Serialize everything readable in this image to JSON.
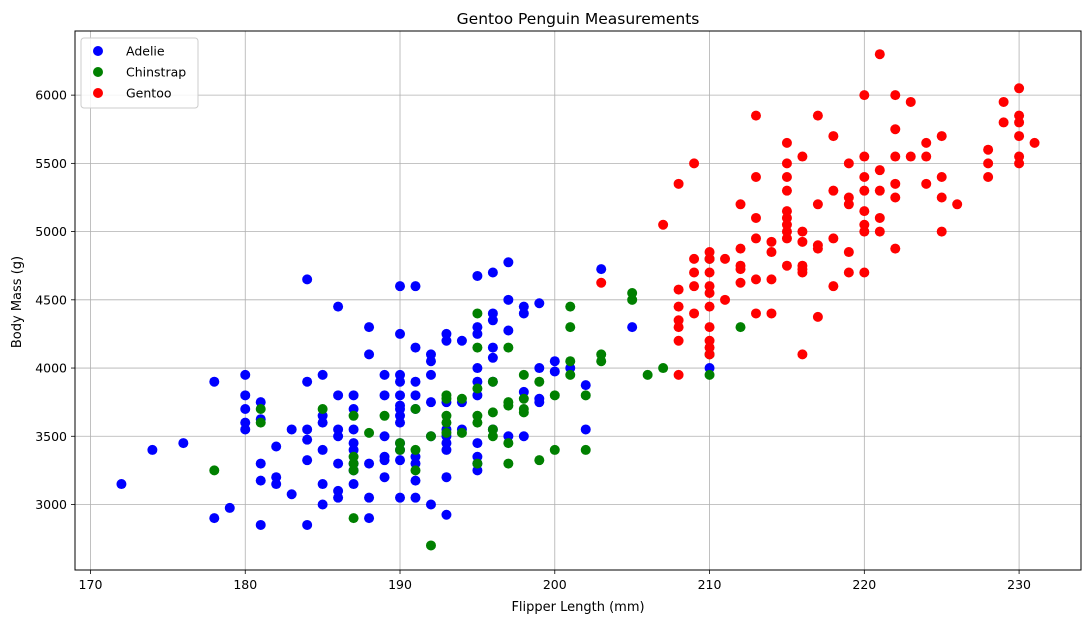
{
  "chart_data": {
    "type": "scatter",
    "title": "Gentoo Penguin Measurements",
    "xlabel": "Flipper Length (mm)",
    "ylabel": "Body Mass (g)",
    "xlim": [
      169,
      234
    ],
    "ylim": [
      2520,
      6470
    ],
    "xticks": [
      170,
      180,
      190,
      200,
      210,
      220,
      230
    ],
    "yticks": [
      3000,
      3500,
      4000,
      4500,
      5000,
      5500,
      6000
    ],
    "grid": true,
    "legend_position": "top-left",
    "series": [
      {
        "name": "Adelie",
        "color": "#0000ff",
        "points": [
          [
            172,
            3150
          ],
          [
            174,
            3400
          ],
          [
            176,
            3450
          ],
          [
            178,
            3900
          ],
          [
            178,
            2900
          ],
          [
            179,
            2975
          ],
          [
            180,
            3950
          ],
          [
            180,
            3800
          ],
          [
            180,
            3700
          ],
          [
            180,
            3600
          ],
          [
            180,
            3550
          ],
          [
            181,
            3750
          ],
          [
            181,
            3625
          ],
          [
            181,
            3300
          ],
          [
            181,
            3175
          ],
          [
            181,
            2850
          ],
          [
            182,
            3425
          ],
          [
            182,
            3200
          ],
          [
            182,
            3150
          ],
          [
            183,
            3550
          ],
          [
            183,
            3075
          ],
          [
            184,
            4650
          ],
          [
            184,
            3900
          ],
          [
            184,
            3550
          ],
          [
            184,
            3475
          ],
          [
            184,
            3325
          ],
          [
            184,
            2850
          ],
          [
            185,
            3950
          ],
          [
            185,
            3650
          ],
          [
            185,
            3600
          ],
          [
            185,
            3400
          ],
          [
            185,
            3150
          ],
          [
            185,
            3000
          ],
          [
            186,
            4450
          ],
          [
            186,
            3800
          ],
          [
            186,
            3550
          ],
          [
            186,
            3500
          ],
          [
            186,
            3300
          ],
          [
            186,
            3100
          ],
          [
            186,
            3050
          ],
          [
            187,
            3800
          ],
          [
            187,
            3700
          ],
          [
            187,
            3550
          ],
          [
            187,
            3450
          ],
          [
            187,
            3400
          ],
          [
            187,
            3300
          ],
          [
            187,
            3250
          ],
          [
            187,
            3150
          ],
          [
            188,
            4300
          ],
          [
            188,
            4100
          ],
          [
            188,
            3300
          ],
          [
            188,
            3050
          ],
          [
            188,
            2900
          ],
          [
            189,
            3950
          ],
          [
            189,
            3800
          ],
          [
            189,
            3500
          ],
          [
            189,
            3350
          ],
          [
            189,
            3325
          ],
          [
            189,
            3200
          ],
          [
            190,
            4600
          ],
          [
            190,
            4250
          ],
          [
            190,
            3950
          ],
          [
            190,
            3900
          ],
          [
            190,
            3800
          ],
          [
            190,
            3725
          ],
          [
            190,
            3700
          ],
          [
            190,
            3650
          ],
          [
            190,
            3600
          ],
          [
            190,
            3450
          ],
          [
            190,
            3400
          ],
          [
            190,
            3325
          ],
          [
            190,
            3050
          ],
          [
            191,
            4600
          ],
          [
            191,
            4150
          ],
          [
            191,
            3900
          ],
          [
            191,
            3800
          ],
          [
            191,
            3700
          ],
          [
            191,
            3350
          ],
          [
            191,
            3300
          ],
          [
            191,
            3175
          ],
          [
            191,
            3050
          ],
          [
            192,
            4100
          ],
          [
            192,
            4050
          ],
          [
            192,
            3950
          ],
          [
            192,
            3750
          ],
          [
            192,
            3500
          ],
          [
            192,
            3000
          ],
          [
            193,
            4250
          ],
          [
            193,
            4200
          ],
          [
            193,
            3750
          ],
          [
            193,
            3550
          ],
          [
            193,
            3500
          ],
          [
            193,
            3450
          ],
          [
            193,
            3400
          ],
          [
            193,
            3200
          ],
          [
            193,
            2925
          ],
          [
            194,
            4200
          ],
          [
            194,
            3750
          ],
          [
            194,
            3550
          ],
          [
            195,
            4675
          ],
          [
            195,
            4300
          ],
          [
            195,
            4250
          ],
          [
            195,
            4000
          ],
          [
            195,
            3900
          ],
          [
            195,
            3800
          ],
          [
            195,
            3450
          ],
          [
            195,
            3350
          ],
          [
            195,
            3300
          ],
          [
            195,
            3250
          ],
          [
            196,
            4700
          ],
          [
            196,
            4400
          ],
          [
            196,
            4350
          ],
          [
            196,
            4150
          ],
          [
            196,
            4075
          ],
          [
            196,
            3900
          ],
          [
            196,
            3550
          ],
          [
            197,
            4775
          ],
          [
            197,
            4500
          ],
          [
            197,
            4275
          ],
          [
            197,
            3500
          ],
          [
            198,
            4450
          ],
          [
            198,
            4400
          ],
          [
            198,
            3825
          ],
          [
            198,
            3500
          ],
          [
            199,
            4475
          ],
          [
            199,
            4000
          ],
          [
            199,
            3775
          ],
          [
            199,
            3750
          ],
          [
            200,
            4050
          ],
          [
            200,
            3975
          ],
          [
            201,
            4000
          ],
          [
            202,
            3875
          ],
          [
            202,
            3550
          ],
          [
            203,
            4725
          ],
          [
            205,
            4300
          ],
          [
            210,
            4000
          ]
        ]
      },
      {
        "name": "Chinstrap",
        "color": "#008000",
        "points": [
          [
            178,
            3250
          ],
          [
            181,
            3700
          ],
          [
            181,
            3600
          ],
          [
            185,
            3700
          ],
          [
            187,
            3650
          ],
          [
            187,
            3350
          ],
          [
            187,
            3300
          ],
          [
            187,
            3250
          ],
          [
            187,
            2900
          ],
          [
            188,
            3525
          ],
          [
            189,
            3650
          ],
          [
            190,
            3450
          ],
          [
            190,
            3400
          ],
          [
            191,
            3700
          ],
          [
            191,
            3400
          ],
          [
            191,
            3250
          ],
          [
            192,
            3500
          ],
          [
            192,
            2700
          ],
          [
            193,
            3800
          ],
          [
            193,
            3775
          ],
          [
            193,
            3650
          ],
          [
            193,
            3600
          ],
          [
            193,
            3525
          ],
          [
            194,
            3775
          ],
          [
            194,
            3525
          ],
          [
            195,
            4400
          ],
          [
            195,
            4150
          ],
          [
            195,
            3850
          ],
          [
            195,
            3650
          ],
          [
            195,
            3600
          ],
          [
            195,
            3300
          ],
          [
            196,
            3900
          ],
          [
            196,
            3675
          ],
          [
            196,
            3550
          ],
          [
            196,
            3500
          ],
          [
            197,
            4150
          ],
          [
            197,
            3750
          ],
          [
            197,
            3725
          ],
          [
            197,
            3450
          ],
          [
            197,
            3300
          ],
          [
            198,
            3950
          ],
          [
            198,
            3775
          ],
          [
            198,
            3700
          ],
          [
            198,
            3675
          ],
          [
            199,
            3900
          ],
          [
            199,
            3325
          ],
          [
            200,
            3800
          ],
          [
            200,
            3400
          ],
          [
            201,
            4450
          ],
          [
            201,
            4300
          ],
          [
            201,
            4050
          ],
          [
            201,
            3950
          ],
          [
            202,
            3800
          ],
          [
            202,
            3400
          ],
          [
            203,
            4100
          ],
          [
            203,
            4050
          ],
          [
            205,
            4550
          ],
          [
            205,
            4500
          ],
          [
            206,
            3950
          ],
          [
            207,
            4000
          ],
          [
            210,
            4800
          ],
          [
            210,
            4100
          ],
          [
            210,
            3950
          ],
          [
            212,
            4300
          ]
        ]
      },
      {
        "name": "Gentoo",
        "color": "#ff0000",
        "points": [
          [
            203,
            4625
          ],
          [
            207,
            5050
          ],
          [
            208,
            5350
          ],
          [
            208,
            4575
          ],
          [
            208,
            4450
          ],
          [
            208,
            4350
          ],
          [
            208,
            4300
          ],
          [
            208,
            4200
          ],
          [
            208,
            3950
          ],
          [
            209,
            5500
          ],
          [
            209,
            4800
          ],
          [
            209,
            4700
          ],
          [
            209,
            4600
          ],
          [
            209,
            4400
          ],
          [
            210,
            4850
          ],
          [
            210,
            4800
          ],
          [
            210,
            4700
          ],
          [
            210,
            4600
          ],
          [
            210,
            4550
          ],
          [
            210,
            4450
          ],
          [
            210,
            4300
          ],
          [
            210,
            4200
          ],
          [
            210,
            4150
          ],
          [
            210,
            4100
          ],
          [
            211,
            4800
          ],
          [
            211,
            4500
          ],
          [
            212,
            5200
          ],
          [
            212,
            4875
          ],
          [
            212,
            4750
          ],
          [
            212,
            4725
          ],
          [
            212,
            4625
          ],
          [
            213,
            5850
          ],
          [
            213,
            5400
          ],
          [
            213,
            5100
          ],
          [
            213,
            4950
          ],
          [
            213,
            4650
          ],
          [
            213,
            4400
          ],
          [
            214,
            4925
          ],
          [
            214,
            4850
          ],
          [
            214,
            4650
          ],
          [
            214,
            4400
          ],
          [
            215,
            5650
          ],
          [
            215,
            5500
          ],
          [
            215,
            5400
          ],
          [
            215,
            5300
          ],
          [
            215,
            5150
          ],
          [
            215,
            5100
          ],
          [
            215,
            5050
          ],
          [
            215,
            5000
          ],
          [
            215,
            4950
          ],
          [
            215,
            4750
          ],
          [
            216,
            5550
          ],
          [
            216,
            5000
          ],
          [
            216,
            4925
          ],
          [
            216,
            4750
          ],
          [
            216,
            4725
          ],
          [
            216,
            4700
          ],
          [
            216,
            4100
          ],
          [
            217,
            5850
          ],
          [
            217,
            5200
          ],
          [
            217,
            4900
          ],
          [
            217,
            4875
          ],
          [
            217,
            4375
          ],
          [
            218,
            5700
          ],
          [
            218,
            5300
          ],
          [
            218,
            4950
          ],
          [
            218,
            4600
          ],
          [
            219,
            5500
          ],
          [
            219,
            5250
          ],
          [
            219,
            5200
          ],
          [
            219,
            4850
          ],
          [
            219,
            4700
          ],
          [
            220,
            6000
          ],
          [
            220,
            5550
          ],
          [
            220,
            5400
          ],
          [
            220,
            5300
          ],
          [
            220,
            5150
          ],
          [
            220,
            5050
          ],
          [
            220,
            5000
          ],
          [
            220,
            4700
          ],
          [
            221,
            6300
          ],
          [
            221,
            5450
          ],
          [
            221,
            5300
          ],
          [
            221,
            5100
          ],
          [
            221,
            5000
          ],
          [
            222,
            6000
          ],
          [
            222,
            5750
          ],
          [
            222,
            5550
          ],
          [
            222,
            5350
          ],
          [
            222,
            5250
          ],
          [
            222,
            4875
          ],
          [
            223,
            5950
          ],
          [
            223,
            5550
          ],
          [
            224,
            5650
          ],
          [
            224,
            5550
          ],
          [
            224,
            5350
          ],
          [
            225,
            5700
          ],
          [
            225,
            5400
          ],
          [
            225,
            5250
          ],
          [
            225,
            5000
          ],
          [
            226,
            5200
          ],
          [
            228,
            5600
          ],
          [
            228,
            5500
          ],
          [
            228,
            5400
          ],
          [
            229,
            5950
          ],
          [
            229,
            5800
          ],
          [
            230,
            6050
          ],
          [
            230,
            5850
          ],
          [
            230,
            5800
          ],
          [
            230,
            5700
          ],
          [
            230,
            5550
          ],
          [
            230,
            5500
          ],
          [
            231,
            5650
          ]
        ]
      }
    ]
  }
}
